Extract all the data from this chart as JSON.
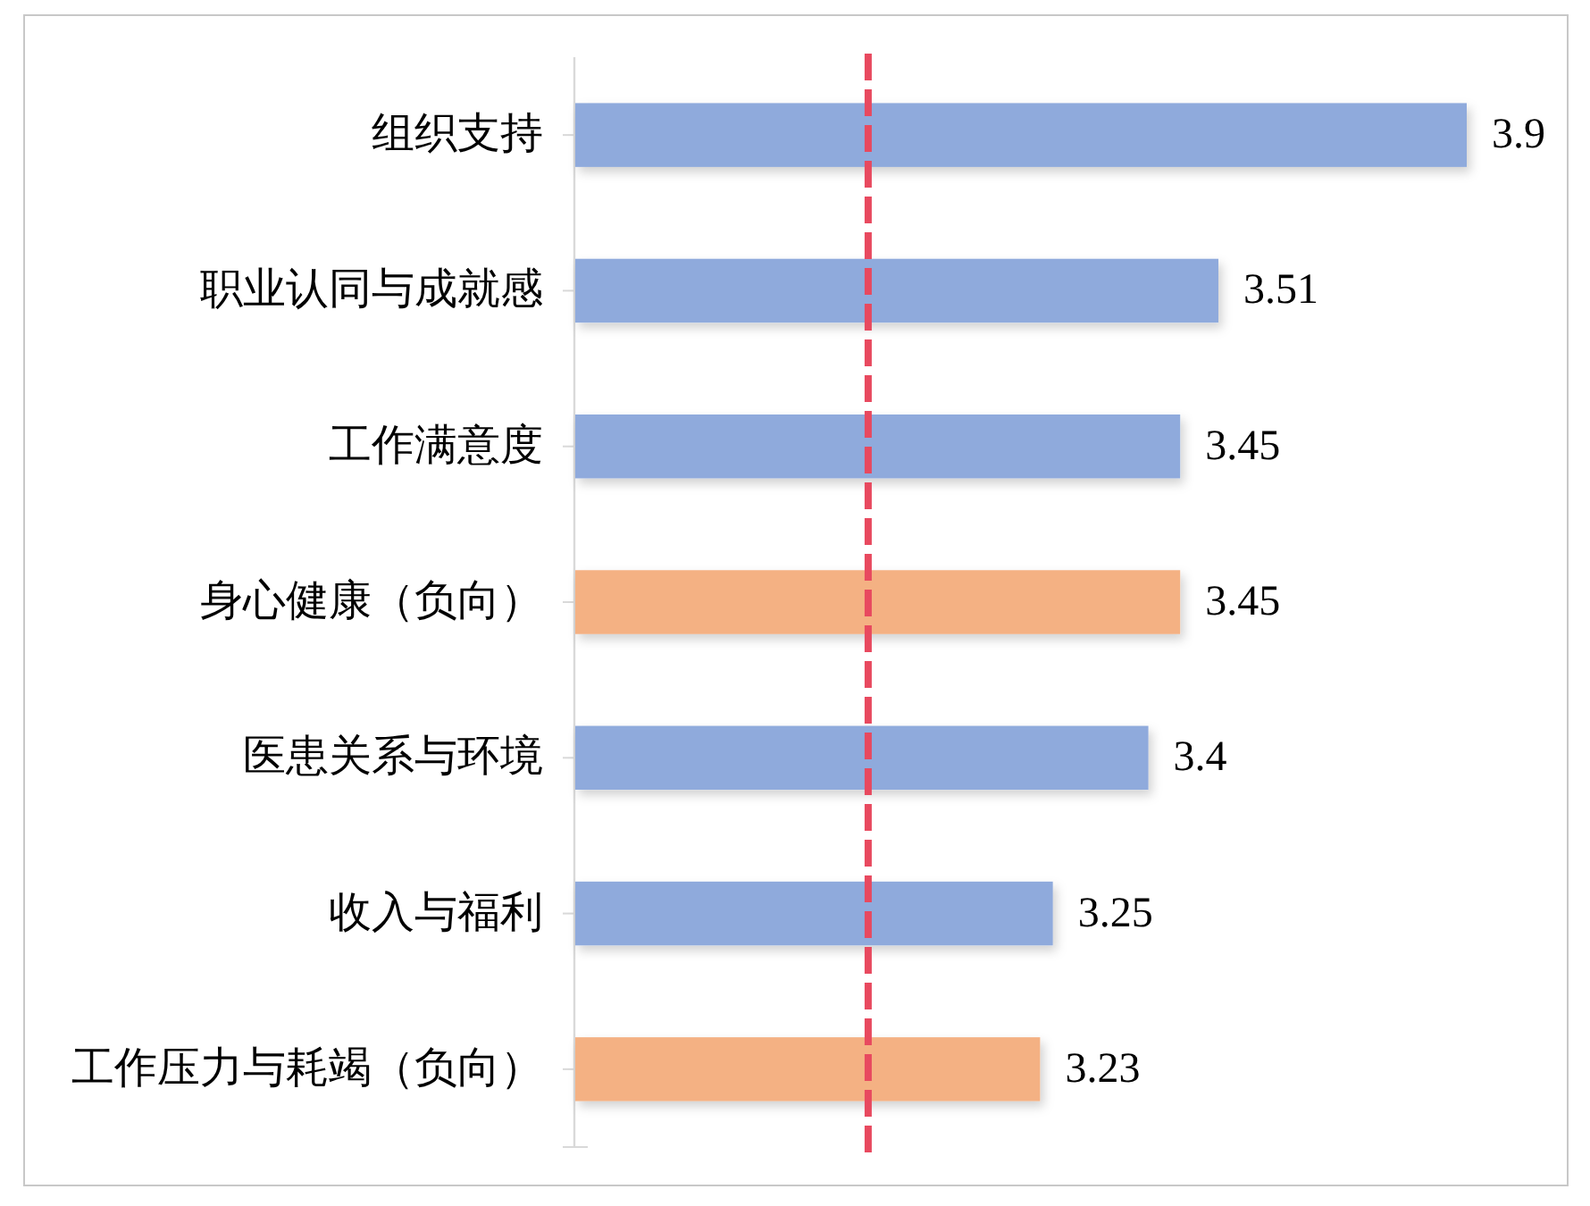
{
  "chart_data": {
    "type": "bar",
    "orientation": "horizontal",
    "categories": [
      "组织支持",
      "职业认同与成就感",
      "工作满意度",
      "身心健康（负向）",
      "医患关系与环境",
      "收入与福利",
      "工作压力与耗竭（负向）"
    ],
    "values": [
      3.9,
      3.51,
      3.45,
      3.45,
      3.4,
      3.25,
      3.23
    ],
    "colors": [
      "#8faadc",
      "#8faadc",
      "#8faadc",
      "#f4b183",
      "#8faadc",
      "#8faadc",
      "#f4b183"
    ],
    "xlim": [
      2.5,
      3.9
    ],
    "data_labels": true,
    "ref_lines": [
      {
        "axis": "x",
        "value": 2.96,
        "color": "#e8495f",
        "line_style": "dashed"
      }
    ]
  }
}
